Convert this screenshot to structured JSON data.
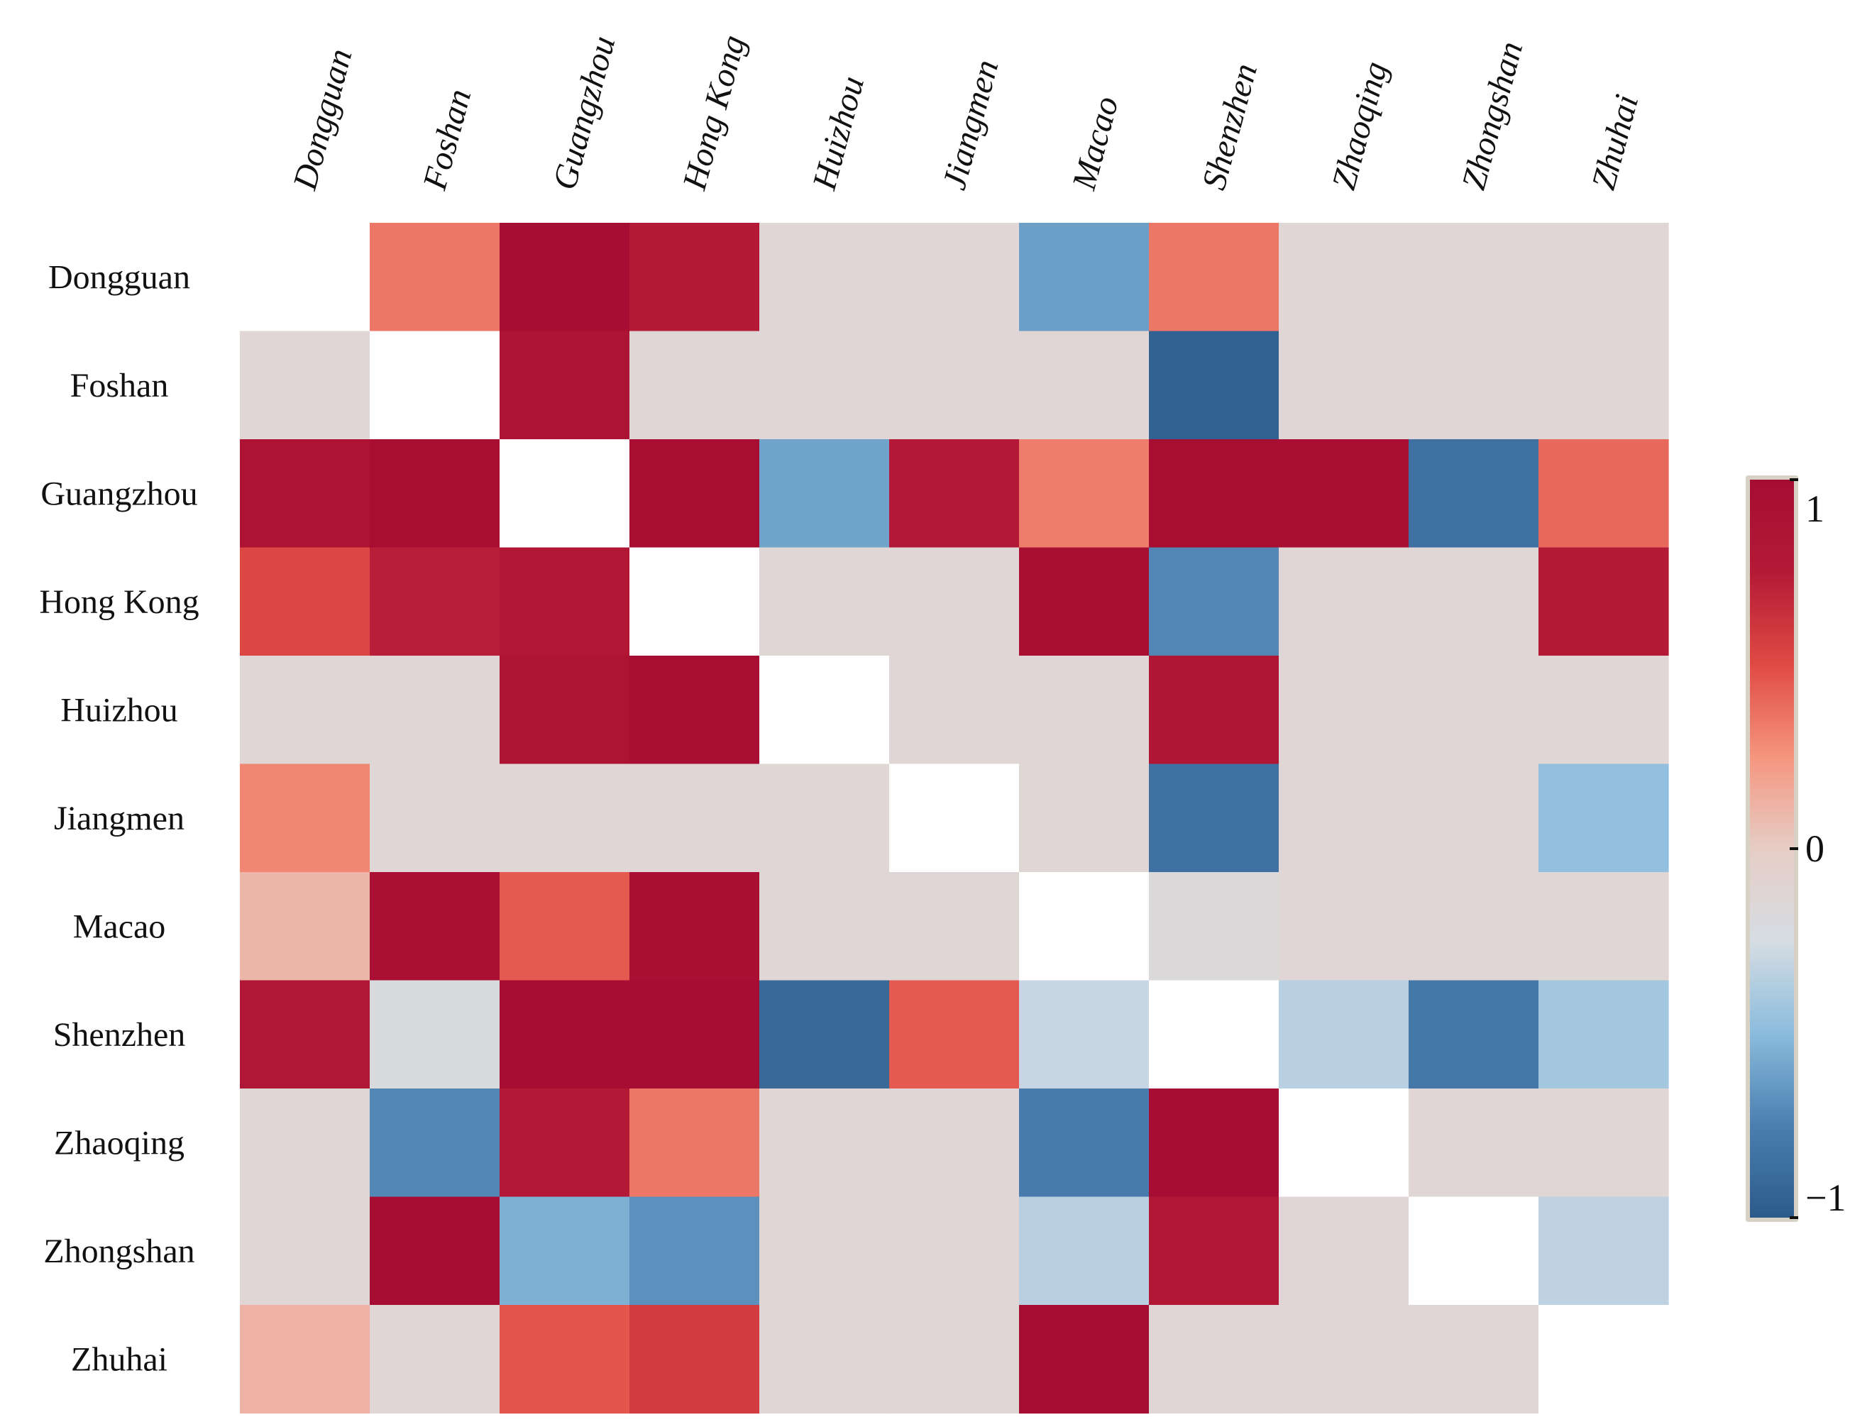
{
  "chart_data": {
    "type": "heatmap",
    "columns": [
      "Dongguan",
      "Foshan",
      "Guangzhou",
      "Hong Kong",
      "Huizhou",
      "Jiangmen",
      "Macao",
      "Shenzhen",
      "Zhaoqing",
      "Zhongshan",
      "Zhuhai"
    ],
    "rows": [
      "Dongguan",
      "Foshan",
      "Guangzhou",
      "Hong Kong",
      "Huizhou",
      "Jiangmen",
      "Macao",
      "Shenzhen",
      "Zhaoqing",
      "Zhongshan",
      "Zhuhai"
    ],
    "values": [
      [
        null,
        0.35,
        0.98,
        0.75,
        0,
        0,
        -0.62,
        0.35,
        0,
        0,
        0
      ],
      [
        0,
        null,
        0.87,
        0,
        0,
        0,
        0,
        -0.95,
        0,
        0,
        0
      ],
      [
        0.88,
        0.97,
        null,
        0.97,
        -0.6,
        0.77,
        0.33,
        0.97,
        0.94,
        -0.85,
        0.4
      ],
      [
        0.52,
        0.73,
        0.8,
        null,
        0,
        0,
        0.94,
        -0.72,
        0,
        0,
        0.75
      ],
      [
        0,
        0,
        0.86,
        0.97,
        null,
        0,
        0,
        0.83,
        0,
        0,
        0
      ],
      [
        0.3,
        0,
        0,
        0,
        0,
        null,
        0,
        -0.85,
        0,
        0,
        -0.48
      ],
      [
        0.1,
        0.92,
        0.45,
        0.95,
        0,
        0,
        null,
        -0.17,
        0,
        0,
        0
      ],
      [
        0.82,
        -0.2,
        0.98,
        0.98,
        -0.9,
        0.45,
        -0.3,
        null,
        -0.35,
        -0.8,
        -0.42
      ],
      [
        0,
        -0.72,
        0.76,
        0.35,
        0,
        0,
        -0.78,
        0.99,
        null,
        0,
        0
      ],
      [
        0,
        0.99,
        -0.55,
        -0.68,
        0,
        0,
        -0.35,
        0.8,
        0,
        null,
        -0.33
      ],
      [
        0.12,
        0,
        0.46,
        0.58,
        0,
        0,
        0.99,
        0.0,
        0,
        0,
        null
      ]
    ],
    "zero_cell_color": "#e0d6d6",
    "colorbar": {
      "ticks": [
        1,
        0,
        -1
      ],
      "tick_labels": [
        "1",
        "0",
        "−1"
      ],
      "range": [
        -1,
        1
      ],
      "colors": [
        "#2c5b8a",
        "#4a7fb0",
        "#8bbcdd",
        "#d6dde3",
        "#e6cdc6",
        "#f5957e",
        "#e04a44",
        "#b41a36",
        "#a50c32"
      ]
    }
  }
}
